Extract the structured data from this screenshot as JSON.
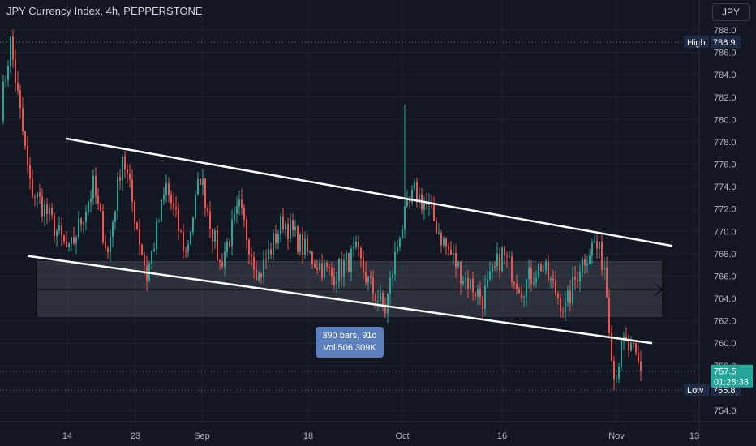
{
  "header": {
    "title": "JPY Currency Index, 4h, PEPPERSTONE",
    "currency_button": "JPY"
  },
  "measure": {
    "bars_label": "390 bars, 91d",
    "vol_label": "Vol 506.309K"
  },
  "price_labels": {
    "high_tag": "High",
    "high_value": "786.9",
    "low_tag": "Low",
    "low_value": "755.8",
    "last_price": "757.5",
    "countdown": "01:28:33"
  },
  "colors": {
    "background": "#131722",
    "up": "#26a69a",
    "down": "#ef5350",
    "trendline": "#ffffff",
    "measure": "#5b7fbd",
    "axis_text": "#b2b5be"
  },
  "chart_data": {
    "type": "candlestick",
    "title": "JPY Currency Index, 4h, PEPPERSTONE",
    "ylim": [
      753.0,
      789.0
    ],
    "y_ticks": [
      754.0,
      756.0,
      758.0,
      760.0,
      762.0,
      764.0,
      766.0,
      768.0,
      770.0,
      772.0,
      774.0,
      776.0,
      778.0,
      780.0,
      782.0,
      784.0,
      786.0,
      788.0
    ],
    "x_ticks": [
      "14",
      "23",
      "Sep",
      "18",
      "Oct",
      "16",
      "Nov",
      "13"
    ],
    "anchors": [
      [
        0,
        781
      ],
      [
        4,
        786.9
      ],
      [
        12,
        774
      ],
      [
        18,
        772
      ],
      [
        28,
        768
      ],
      [
        38,
        774
      ],
      [
        44,
        768
      ],
      [
        50,
        777
      ],
      [
        60,
        766
      ],
      [
        68,
        774
      ],
      [
        76,
        768
      ],
      [
        82,
        775
      ],
      [
        90,
        767
      ],
      [
        98,
        772
      ],
      [
        106,
        766
      ],
      [
        116,
        771
      ],
      [
        126,
        768
      ],
      [
        136,
        766
      ],
      [
        146,
        768
      ],
      [
        152,
        765
      ],
      [
        158,
        763
      ],
      [
        164,
        770
      ],
      [
        170,
        773.5
      ],
      [
        176,
        772
      ],
      [
        182,
        769
      ],
      [
        190,
        766
      ],
      [
        198,
        764
      ],
      [
        206,
        768
      ],
      [
        214,
        765
      ],
      [
        222,
        767
      ],
      [
        232,
        763
      ],
      [
        238,
        767
      ],
      [
        244,
        769
      ],
      [
        248,
        767
      ],
      [
        252,
        757
      ],
      [
        256,
        760
      ],
      [
        260,
        759
      ],
      [
        263,
        757.5
      ]
    ],
    "spikes": [
      [
        166,
        781.3,
        "high"
      ],
      [
        252,
        755.8,
        "low"
      ],
      [
        4,
        786.9,
        "high"
      ]
    ],
    "channel_upper": [
      [
        12,
        778.3
      ],
      [
        271,
        768.7
      ]
    ],
    "channel_lower": [
      [
        2,
        767.8
      ],
      [
        262,
        760.0
      ]
    ],
    "measure_range": {
      "start_bar": 0,
      "end_bar": 263,
      "top": 767.3,
      "bottom": 762.4,
      "mid": 764.8
    },
    "high": 786.9,
    "low": 755.8,
    "last": 757.5
  }
}
